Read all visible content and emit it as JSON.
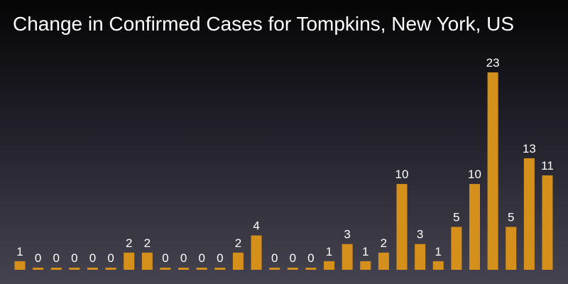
{
  "chart_data": {
    "type": "bar",
    "title": "Change in Confirmed Cases for Tompkins, New York, US",
    "values": [
      1,
      0,
      0,
      0,
      0,
      0,
      2,
      2,
      0,
      0,
      0,
      0,
      2,
      4,
      0,
      0,
      0,
      1,
      3,
      1,
      2,
      10,
      3,
      1,
      5,
      10,
      23,
      5,
      13,
      11
    ],
    "data_labels": "shown above each bar",
    "xlabel": "",
    "ylabel": "",
    "ylim": [
      0,
      23
    ],
    "grid": false,
    "legend": "none",
    "colors": {
      "bar": "#d4901a",
      "label": "#ffffff",
      "title": "#ffffff",
      "background_top": "#050505",
      "background_bottom": "#45434f"
    }
  }
}
